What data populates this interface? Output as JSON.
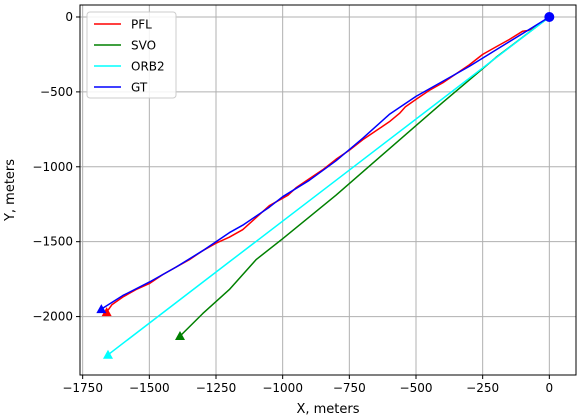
{
  "chart_data": {
    "type": "line",
    "title": "",
    "xlabel": "X, meters",
    "ylabel": "Y, meters",
    "xlim": [
      -1760,
      100
    ],
    "ylim": [
      -2390,
      80
    ],
    "grid": true,
    "legend_position": "top-left",
    "xticks": [
      -1750,
      -1500,
      -1250,
      -1000,
      -750,
      -500,
      -250,
      0
    ],
    "xtick_labels": [
      "−1750",
      "−1500",
      "−1250",
      "−1000",
      "−750",
      "−500",
      "−250",
      "0"
    ],
    "yticks": [
      0,
      -500,
      -1000,
      -1500,
      -2000
    ],
    "ytick_labels": [
      "0",
      "−500",
      "−1000",
      "−1500",
      "−2000"
    ],
    "start_point": {
      "x": 0,
      "y": 0,
      "marker": "circle",
      "color": "#0000ff"
    },
    "series": [
      {
        "name": "PFL",
        "color": "#ff0000",
        "x": [
          0,
          -30,
          -60,
          -80,
          -100,
          -150,
          -200,
          -250,
          -300,
          -350,
          -400,
          -450,
          -500,
          -540,
          -560,
          -600,
          -650,
          -700,
          -750,
          -800,
          -850,
          -900,
          -950,
          -980,
          -1000,
          -1050,
          -1100,
          -1150,
          -1200,
          -1250,
          -1300,
          -1350,
          -1400,
          -1430,
          -1450,
          -1500,
          -1550,
          -1600,
          -1640,
          -1660
        ],
        "y": [
          0,
          -40,
          -75,
          -90,
          -95,
          -150,
          -200,
          -250,
          -320,
          -380,
          -440,
          -490,
          -550,
          -600,
          -640,
          -700,
          -760,
          -820,
          -890,
          -950,
          -1020,
          -1080,
          -1140,
          -1190,
          -1210,
          -1260,
          -1340,
          -1420,
          -1470,
          -1510,
          -1560,
          -1620,
          -1670,
          -1700,
          -1720,
          -1780,
          -1820,
          -1870,
          -1920,
          -1970
        ],
        "end_marker": "triangle"
      },
      {
        "name": "SVO",
        "color": "#008000",
        "x": [
          0,
          -200,
          -400,
          -600,
          -800,
          -1000,
          -1100,
          -1200,
          -1300,
          -1385
        ],
        "y": [
          0,
          -270,
          -570,
          -880,
          -1190,
          -1480,
          -1620,
          -1820,
          -1980,
          -2130
        ],
        "end_marker": "triangle"
      },
      {
        "name": "ORB2",
        "color": "#00ffff",
        "x": [
          0,
          -400,
          -800,
          -1200,
          -1655
        ],
        "y": [
          0,
          -545,
          -1090,
          -1635,
          -2255
        ],
        "end_marker": "triangle"
      },
      {
        "name": "GT",
        "color": "#0000ff",
        "x": [
          0,
          -100,
          -200,
          -300,
          -400,
          -500,
          -600,
          -700,
          -800,
          -900,
          -1000,
          -1050,
          -1100,
          -1150,
          -1200,
          -1300,
          -1400,
          -1500,
          -1600,
          -1680
        ],
        "y": [
          0,
          -110,
          -220,
          -330,
          -430,
          -530,
          -650,
          -810,
          -960,
          -1090,
          -1200,
          -1270,
          -1330,
          -1390,
          -1440,
          -1560,
          -1670,
          -1770,
          -1860,
          -1950
        ],
        "end_marker": "triangle"
      }
    ]
  }
}
